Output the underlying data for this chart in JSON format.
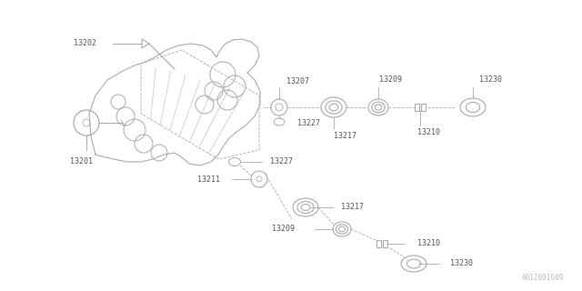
{
  "bg_color": "#ffffff",
  "line_color": "#aaaaaa",
  "text_color": "#555555",
  "fig_width": 6.4,
  "fig_height": 3.2,
  "watermark": "A012001049",
  "dpi": 100
}
